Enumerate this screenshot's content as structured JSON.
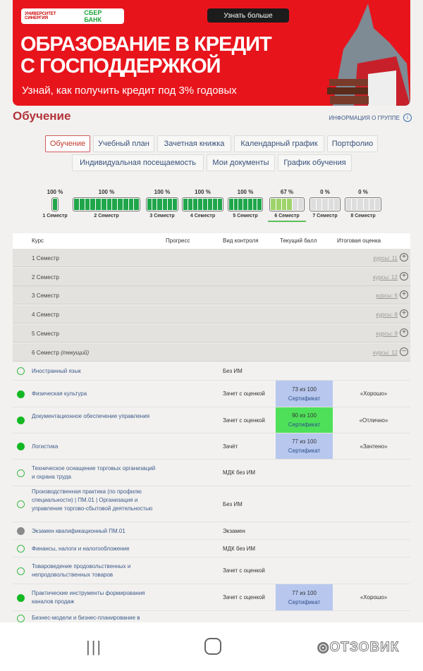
{
  "banner": {
    "logo_university": "УНИВЕРСИТЕТ СИНЕРГИЯ",
    "logo_bank": "СБЕР БАНК",
    "cta": "Узнать больше",
    "headline1": "ОБРАЗОВАНИЕ В КРЕДИТ",
    "headline2": "С ГОСПОДДЕРЖКОЙ",
    "subline": "Узнай, как получить кредит под 3% годовых",
    "color": "#e8141c"
  },
  "page": {
    "title": "Обучение",
    "group_info": "ИНФОРМАЦИЯ О ГРУППЕ"
  },
  "tabs": [
    {
      "label": "Обучение",
      "active": true
    },
    {
      "label": "Учебный план"
    },
    {
      "label": "Зачетная книжка"
    },
    {
      "label": "Календарный график"
    },
    {
      "label": "Портфолио"
    },
    {
      "label": "Индивидуальная посещаемость"
    },
    {
      "label": "Мои документы"
    },
    {
      "label": "График обучения"
    }
  ],
  "semesters": [
    {
      "label": "1 Семестр",
      "percent": "100 %",
      "segments": 1,
      "filled": 1
    },
    {
      "label": "2 Семестр",
      "percent": "100 %",
      "segments": 12,
      "filled": 12
    },
    {
      "label": "3 Семестр",
      "percent": "100 %",
      "segments": 6,
      "filled": 6
    },
    {
      "label": "4 Семестр",
      "percent": "100 %",
      "segments": 8,
      "filled": 8
    },
    {
      "label": "5 Семестр",
      "percent": "100 %",
      "segments": 7,
      "filled": 7
    },
    {
      "label": "6 Семестр",
      "percent": "67 %",
      "segments": 6,
      "filled": 4,
      "current": true
    },
    {
      "label": "7 Семестр",
      "percent": "0 %",
      "segments": 5,
      "filled": 0
    },
    {
      "label": "8 Семестр",
      "percent": "0 %",
      "segments": 6,
      "filled": 0
    }
  ],
  "table": {
    "headers": {
      "course": "Курс",
      "progress": "Прогресс",
      "control": "Вид контроля",
      "score": "Текущий балл",
      "final": "Итоговая оценка"
    },
    "semester_rows": [
      {
        "num": "1",
        "label": "Семестр",
        "courses": "курсы: 11",
        "toggle": "+"
      },
      {
        "num": "2",
        "label": "Семестр",
        "courses": "курсы: 12",
        "toggle": "+"
      },
      {
        "num": "3",
        "label": "Семестр",
        "courses": "курсы: 6",
        "toggle": "+"
      },
      {
        "num": "4",
        "label": "Семестр",
        "courses": "курсы: 8",
        "toggle": "+"
      },
      {
        "num": "5",
        "label": "Семестр",
        "courses": "курсы: 9",
        "toggle": "+"
      },
      {
        "num": "6",
        "label": "Семестр",
        "current": "(текущий)",
        "courses": "курсы: 12",
        "toggle": "−"
      }
    ],
    "courses": [
      {
        "name": "Иностранный язык",
        "control": "Без ИМ",
        "status": "open"
      },
      {
        "name": "Физическая культура",
        "control": "Зачет с оценкой",
        "score": "73 из 100",
        "cert": "Сертификат",
        "final": "«Хорошо»",
        "status": "done",
        "score_color": "#b7c7ee"
      },
      {
        "name": "Документационное обеспечение управления",
        "control": "Зачет с оценкой",
        "score": "90 из 100",
        "cert": "Сертификат",
        "final": "«Отлично»",
        "status": "done",
        "score_color": "#4fe05a"
      },
      {
        "name": "Логистика",
        "control": "Зачёт",
        "score": "77 из 100",
        "cert": "Сертификат",
        "final": "«Зачтено»",
        "status": "done",
        "score_color": "#b7c7ee"
      },
      {
        "name": "Техническое оснащение торговых организаций и охрана труда",
        "control": "МДК без ИМ",
        "status": "open"
      },
      {
        "name": "Производственная практика (по профилю специальности) | ПМ.01 | Организация и управление торгово-сбытовой деятельностью",
        "control": "Без ИМ",
        "status": "open"
      },
      {
        "name": "Экзамен квалификационный ПМ.01",
        "control": "Экзамен",
        "status": "gray"
      },
      {
        "name": "Финансы, налоги и налогообложение",
        "control": "МДК без ИМ",
        "status": "open"
      },
      {
        "name": "Товароведение продовольственных и непродовольственных товаров",
        "control": "Зачет с оценкой",
        "status": "open"
      },
      {
        "name": "Практические инструменты формирования каналов продаж",
        "control": "Зачет с оценкой",
        "score": "77 из 100",
        "cert": "Сертификат",
        "final": "«Хорошо»",
        "status": "done",
        "score_color": "#b7c7ee"
      },
      {
        "name": "Бизнес-модели и бизнес-планирование в",
        "control": "",
        "status": "open"
      }
    ]
  },
  "watermark": "ОТЗОВИК"
}
